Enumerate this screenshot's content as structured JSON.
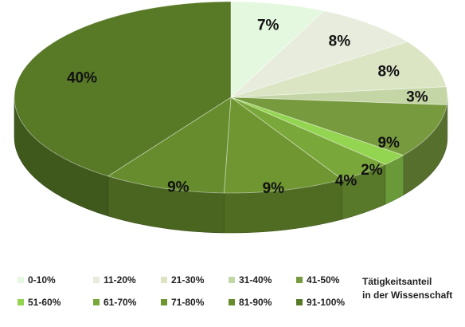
{
  "chart_data": {
    "type": "pie",
    "style": "3d",
    "legend_title": "Tätigkeitsanteil in der Wissenschaft",
    "legend_title_lines": [
      "Tätigkeitsanteil",
      "in der Wissenschaft"
    ],
    "legend_position": "bottom",
    "slices": [
      {
        "label": "0-10%",
        "value": 7,
        "value_label": "7%",
        "color": "#e4f8e0"
      },
      {
        "label": "11-20%",
        "value": 8,
        "value_label": "8%",
        "color": "#e7ecdc"
      },
      {
        "label": "21-30%",
        "value": 8,
        "value_label": "8%",
        "color": "#dbe5c4"
      },
      {
        "label": "31-40%",
        "value": 3,
        "value_label": "3%",
        "color": "#c5d6a6"
      },
      {
        "label": "41-50%",
        "value": 9,
        "value_label": "9%",
        "color": "#779a3e"
      },
      {
        "label": "51-60%",
        "value": 2,
        "value_label": "2%",
        "color": "#93d450"
      },
      {
        "label": "61-70%",
        "value": 4,
        "value_label": "4%",
        "color": "#7aa73a"
      },
      {
        "label": "71-80%",
        "value": 9,
        "value_label": "9%",
        "color": "#6f9630"
      },
      {
        "label": "81-90%",
        "value": 9,
        "value_label": "9%",
        "color": "#668c2d"
      },
      {
        "label": "91-100%",
        "value": 40,
        "value_label": "40%",
        "color": "#587a27"
      }
    ]
  }
}
